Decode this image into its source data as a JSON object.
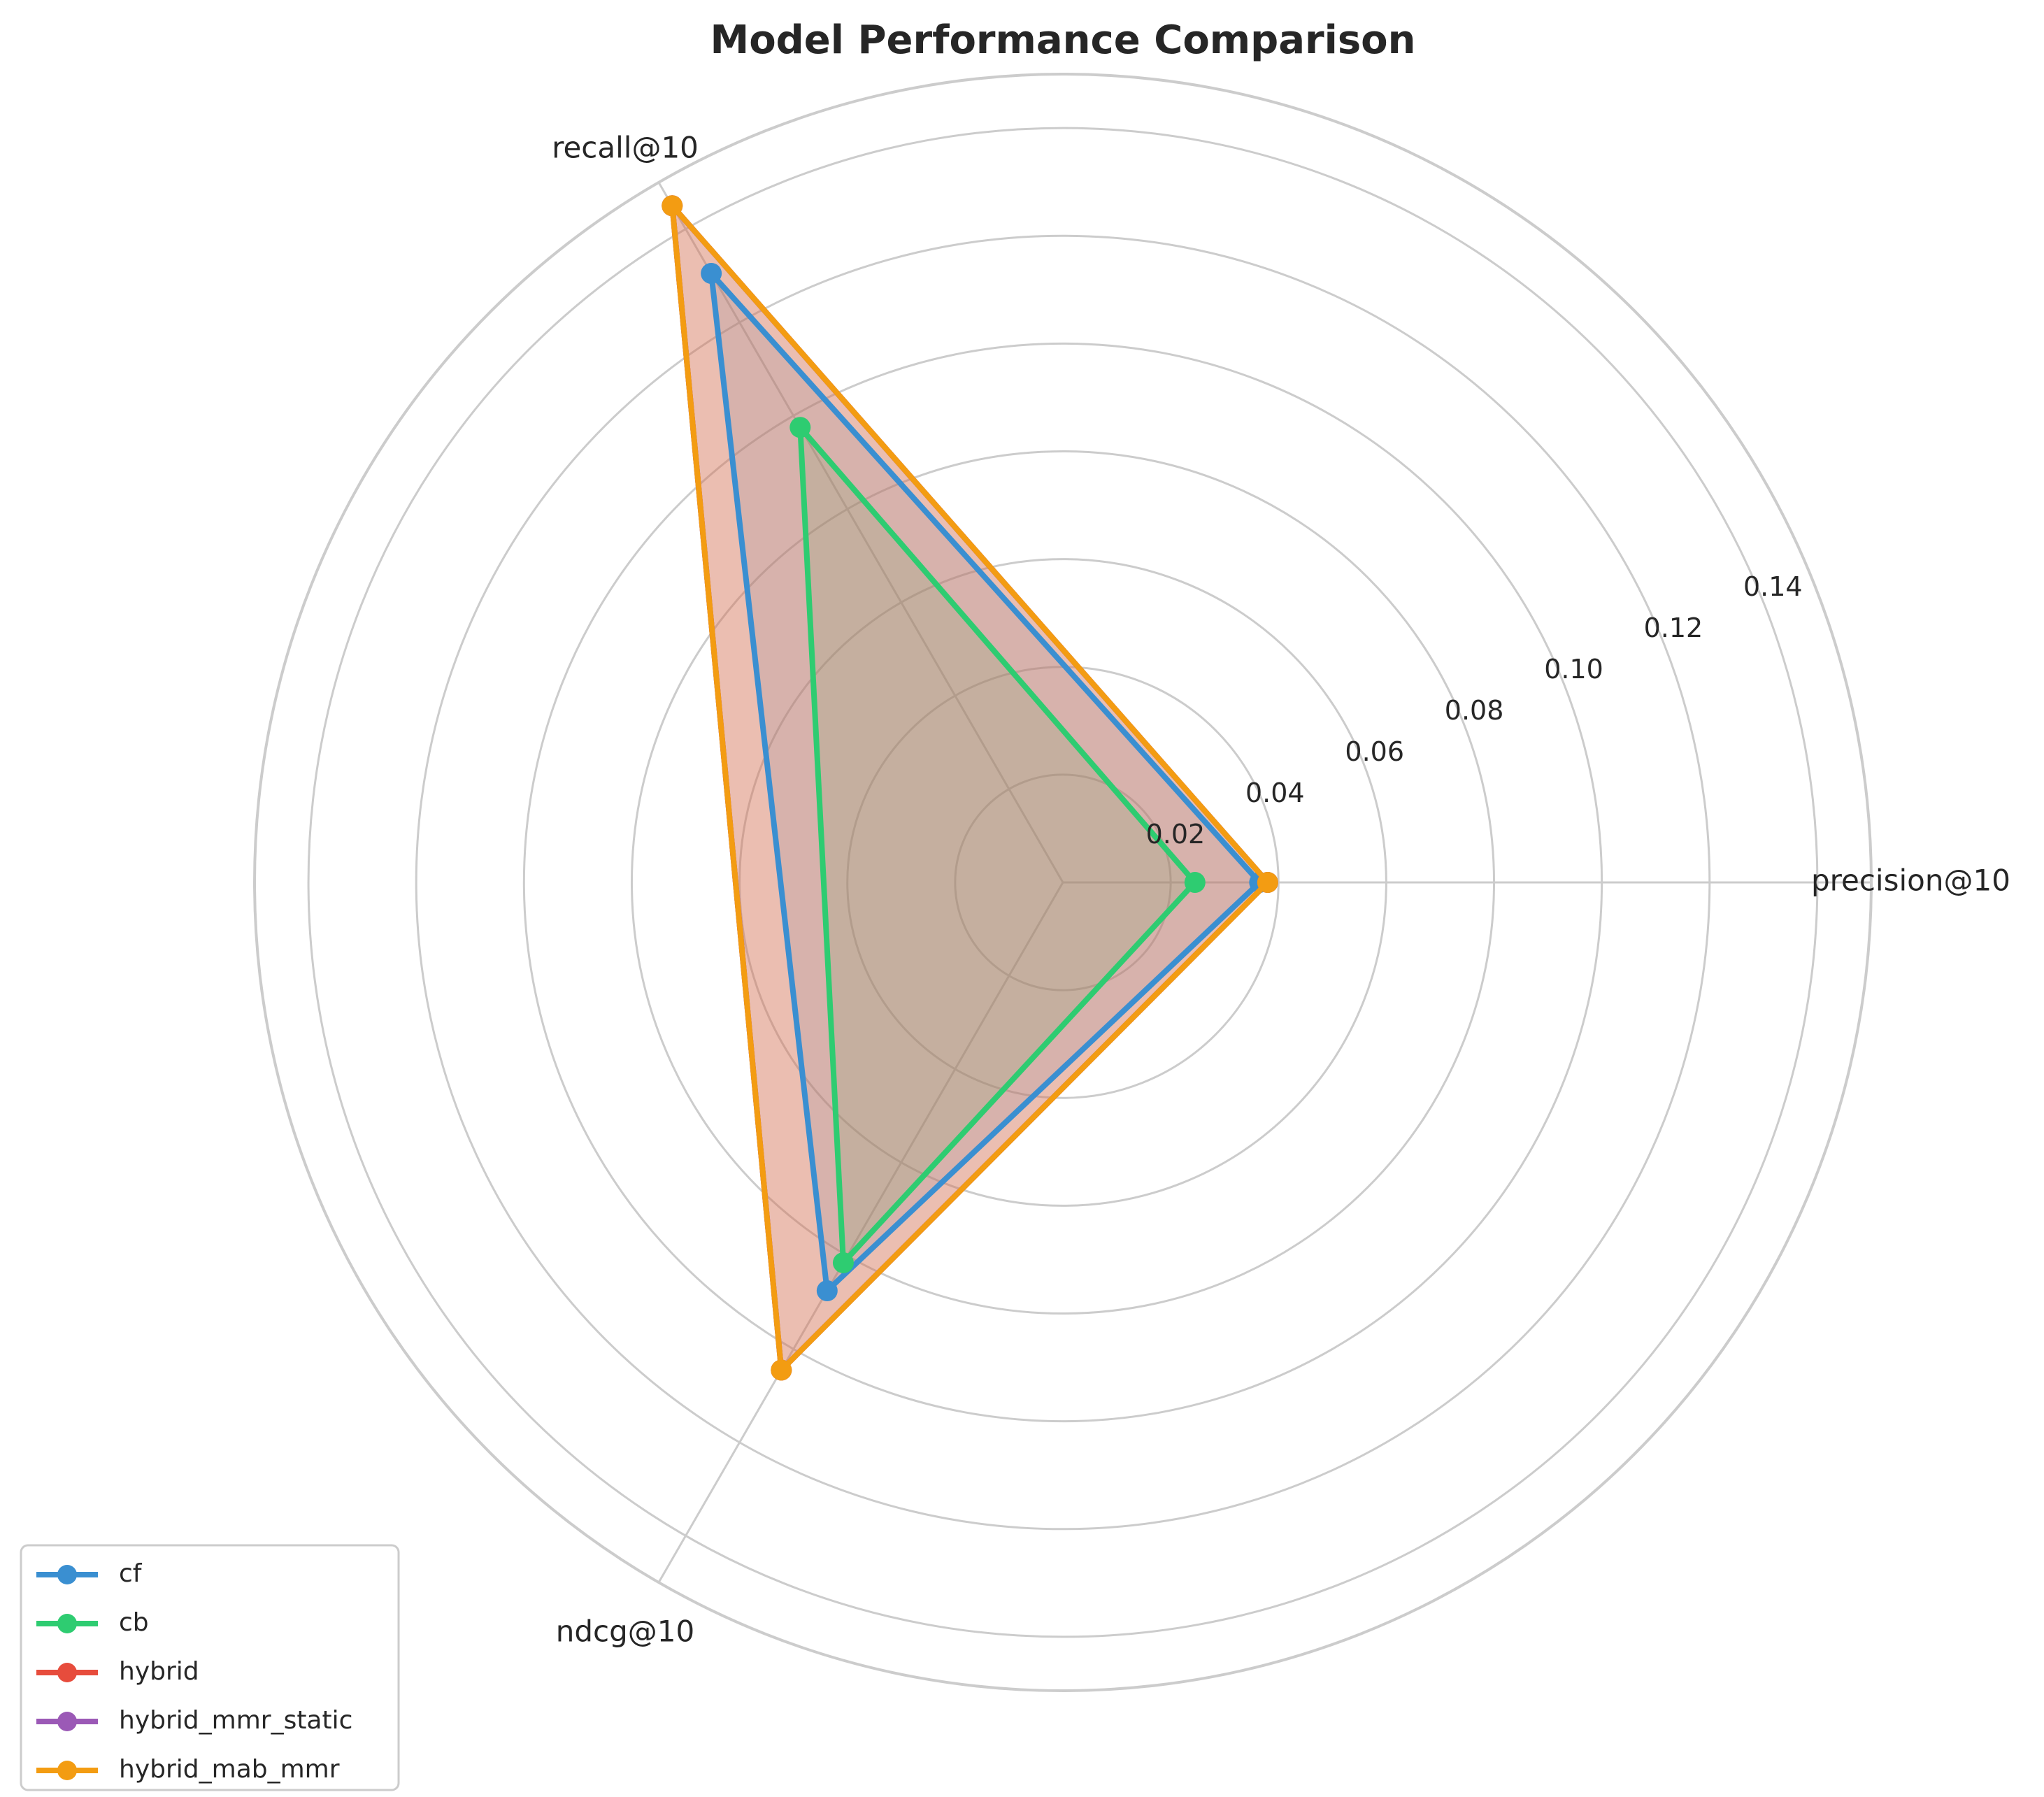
{
  "chart_data": {
    "type": "radar",
    "title": "Model Performance Comparison",
    "axes": [
      "precision@10",
      "recall@10",
      "ndcg@10"
    ],
    "r_ticks": [
      0.02,
      0.04,
      0.06,
      0.08,
      0.1,
      0.12,
      0.14
    ],
    "r_tick_labels": [
      "0.02",
      "0.04",
      "0.06",
      "0.08",
      "0.10",
      "0.12",
      "0.14"
    ],
    "rlim": [
      0,
      0.15
    ],
    "grid": true,
    "legend_position": "lower-left",
    "series": [
      {
        "name": "cf",
        "color": "#3a8fd1",
        "values": [
          0.0365,
          0.1305,
          0.0875
        ]
      },
      {
        "name": "cb",
        "color": "#2ecc71",
        "values": [
          0.0245,
          0.0975,
          0.0815
        ]
      },
      {
        "name": "hybrid",
        "color": "#e74c3c",
        "values": [
          0.038,
          0.145,
          0.1045
        ]
      },
      {
        "name": "hybrid_mmr_static",
        "color": "#9b59b6",
        "values": [
          0.038,
          0.145,
          0.1045
        ]
      },
      {
        "name": "hybrid_mab_mmr",
        "color": "#f39c12",
        "values": [
          0.038,
          0.145,
          0.1045
        ]
      }
    ]
  }
}
